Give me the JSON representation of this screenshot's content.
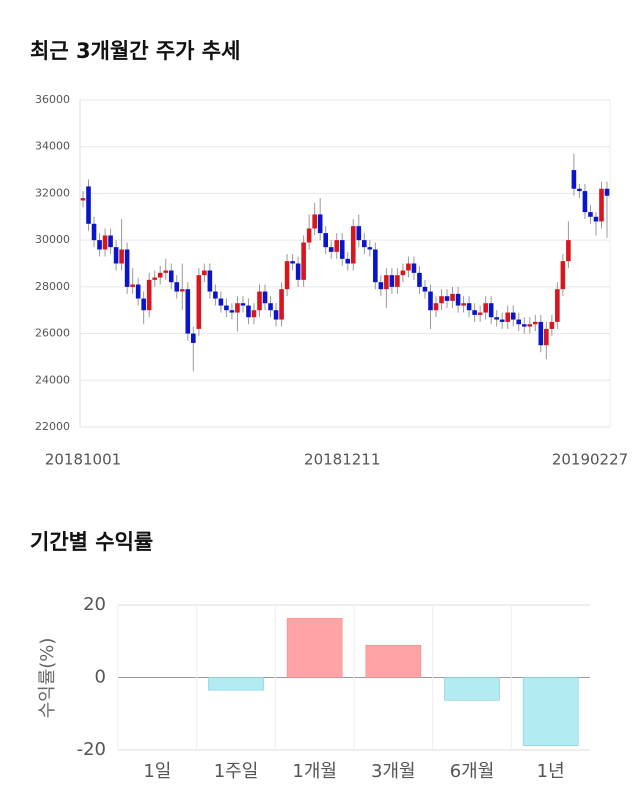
{
  "chart_data": [
    {
      "type": "candlestick",
      "title": "최근 3개월간 주가 추세",
      "categories": [
        "20181001",
        null,
        null,
        null,
        null,
        null,
        null,
        null,
        null,
        null,
        null,
        null,
        null,
        null,
        null,
        null,
        null,
        null,
        null,
        null,
        null,
        null,
        null,
        null,
        null,
        null,
        null,
        null,
        null,
        null,
        null,
        null,
        null,
        null,
        null,
        null,
        null,
        null,
        null,
        null,
        null,
        null,
        null,
        null,
        null,
        null,
        null,
        "20181211",
        null,
        null,
        null,
        null,
        null,
        null,
        null,
        null,
        null,
        null,
        null,
        null,
        null,
        null,
        null,
        null,
        null,
        null,
        null,
        null,
        null,
        null,
        null,
        null,
        null,
        null,
        null,
        null,
        null,
        null,
        null,
        null,
        null,
        null,
        null,
        null,
        null,
        null,
        null,
        null,
        null,
        null,
        null,
        null,
        null,
        null,
        null,
        "20190227"
      ],
      "open": [
        31700,
        32300,
        30700,
        30000,
        29600,
        30200,
        29700,
        29000,
        29600,
        28000,
        28100,
        27500,
        27000,
        28300,
        28400,
        28600,
        28700,
        28200,
        27800,
        27900,
        26000,
        26200,
        28500,
        28700,
        27800,
        27500,
        27200,
        27000,
        26900,
        27300,
        27200,
        26700,
        27000,
        27800,
        27300,
        27000,
        26600,
        27900,
        29100,
        29000,
        28300,
        29900,
        30500,
        31100,
        30300,
        29700,
        29500,
        30000,
        29200,
        29000,
        30600,
        30000,
        29700,
        29600,
        28200,
        27900,
        28500,
        28000,
        28500,
        28700,
        29000,
        28600,
        28000,
        27800,
        27000,
        27300,
        27600,
        27400,
        27700,
        27200,
        27300,
        27000,
        26800,
        26900,
        27300,
        26700,
        26600,
        26500,
        26900,
        26600,
        26400,
        26300,
        26400,
        26500,
        25500,
        26200,
        26500,
        27900,
        29100,
        33000,
        32200,
        32100,
        31200,
        31000,
        30800,
        32200
      ],
      "high": [
        32100,
        32600,
        31000,
        30300,
        30500,
        30500,
        30000,
        30900,
        29900,
        28800,
        28400,
        27800,
        28600,
        28700,
        28900,
        29200,
        29000,
        28500,
        29000,
        28200,
        26300,
        28800,
        29000,
        29000,
        28100,
        27800,
        27500,
        27300,
        27600,
        27600,
        27500,
        27300,
        28100,
        28100,
        27600,
        27300,
        28200,
        29400,
        29400,
        29300,
        30200,
        31100,
        31600,
        31800,
        30600,
        30000,
        30300,
        30300,
        29500,
        30900,
        31100,
        30300,
        30000,
        29900,
        28500,
        28800,
        28800,
        28800,
        29000,
        29300,
        29300,
        28900,
        28300,
        28100,
        27600,
        27900,
        27900,
        28000,
        28000,
        27600,
        27600,
        27300,
        27200,
        27600,
        27600,
        27000,
        26900,
        27200,
        27200,
        26900,
        26700,
        26700,
        26800,
        26800,
        26500,
        26800,
        28200,
        29400,
        30800,
        33700,
        32400,
        32400,
        31500,
        31200,
        32500,
        32500
      ],
      "low": [
        31400,
        30400,
        29700,
        29300,
        29300,
        29400,
        28700,
        28700,
        27700,
        27700,
        27200,
        26400,
        26700,
        28000,
        28100,
        28300,
        27900,
        27500,
        27000,
        25700,
        24400,
        25900,
        28200,
        27500,
        27200,
        26900,
        26700,
        26600,
        26100,
        26900,
        26400,
        26400,
        26700,
        27000,
        26700,
        26300,
        26300,
        27600,
        28700,
        28000,
        28000,
        29600,
        30200,
        30000,
        29400,
        29200,
        29200,
        28900,
        28700,
        28700,
        29700,
        29400,
        29300,
        27900,
        27600,
        27100,
        27700,
        27700,
        28200,
        28400,
        28300,
        27700,
        27500,
        26200,
        26700,
        27000,
        27100,
        27100,
        26900,
        26900,
        26700,
        26500,
        26500,
        26600,
        26400,
        26300,
        26200,
        26200,
        26300,
        26100,
        26000,
        26000,
        26100,
        25200,
        24900,
        25900,
        26200,
        27600,
        28800,
        31900,
        31800,
        30900,
        30700,
        30200,
        30500,
        30100
      ],
      "close": [
        31800,
        30700,
        30000,
        29600,
        30200,
        29700,
        29000,
        29600,
        28000,
        28100,
        27500,
        27000,
        28300,
        28400,
        28600,
        28700,
        28200,
        27800,
        27900,
        26000,
        25600,
        28500,
        28700,
        27800,
        27500,
        27200,
        27000,
        26900,
        27300,
        27200,
        26700,
        27000,
        27800,
        27300,
        27000,
        26600,
        27900,
        29100,
        29000,
        28300,
        29900,
        30500,
        31100,
        30300,
        29700,
        29500,
        30000,
        29200,
        29000,
        30600,
        30000,
        29700,
        29600,
        28200,
        27900,
        28500,
        28000,
        28500,
        28700,
        29000,
        28600,
        28000,
        27800,
        27000,
        27300,
        27600,
        27400,
        27700,
        27200,
        27300,
        27000,
        26800,
        26900,
        27300,
        26700,
        26600,
        26500,
        26900,
        26600,
        26400,
        26300,
        26400,
        26500,
        25500,
        26200,
        26500,
        27900,
        29100,
        30000,
        32200,
        32100,
        31200,
        31000,
        30800,
        32200,
        31900
      ],
      "up_color": "#d7161e",
      "down_color": "#0a14c8",
      "ylim": [
        22000,
        36000
      ],
      "yticks": [
        22000,
        24000,
        26000,
        28000,
        30000,
        32000,
        34000,
        36000
      ],
      "grid": true
    },
    {
      "type": "bar",
      "title": "기간별 수익률",
      "ylabel": "수익률(%)",
      "categories": [
        "1일",
        "1주일",
        "1개월",
        "3개월",
        "6개월",
        "1년"
      ],
      "values": [
        0,
        -3.5,
        16.3,
        8.9,
        -6.3,
        -18.8
      ],
      "positive_color": "#ffa3a6",
      "negative_color": "#b2ebf2",
      "ylim": [
        -20,
        20
      ],
      "yticks": [
        -20,
        0,
        20
      ],
      "grid": true
    }
  ]
}
